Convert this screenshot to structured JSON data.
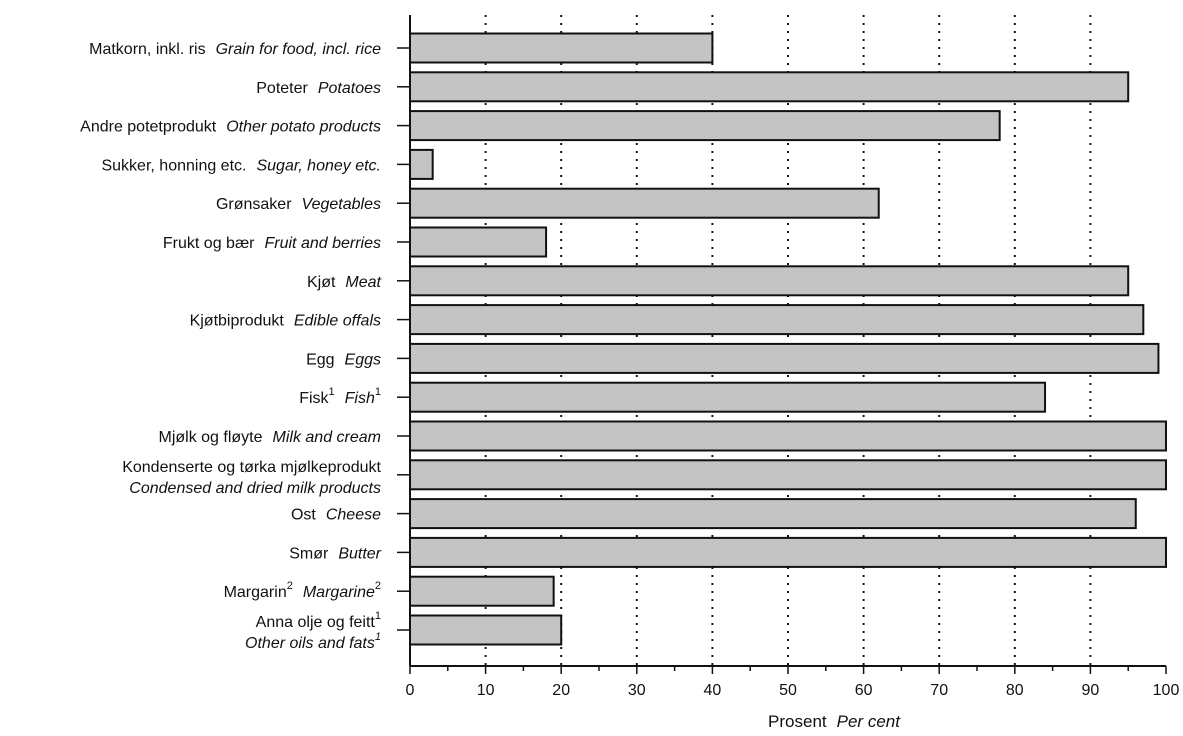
{
  "chart_data": {
    "type": "bar",
    "orientation": "horizontal",
    "categories": [
      {
        "no": "Matkorn, inkl. ris",
        "en": "Grain for food, incl. rice",
        "value": 40
      },
      {
        "no": "Poteter",
        "en": "Potatoes",
        "value": 95
      },
      {
        "no": "Andre potetprodukt",
        "en": "Other potato products",
        "value": 78
      },
      {
        "no": "Sukker, honning etc.",
        "en": "Sugar, honey etc.",
        "value": 3
      },
      {
        "no": "Grønsaker",
        "en": "Vegetables",
        "value": 62
      },
      {
        "no": "Frukt og bær",
        "en": "Fruit and berries",
        "value": 18
      },
      {
        "no": "Kjøt",
        "en": "Meat",
        "value": 95
      },
      {
        "no": "Kjøtbiprodukt",
        "en": "Edible offals",
        "value": 97
      },
      {
        "no": "Egg",
        "en": "Eggs",
        "value": 99
      },
      {
        "no": "Fisk",
        "no_sup": "1",
        "en": "Fish",
        "en_sup": "1",
        "value": 84
      },
      {
        "no": "Mjølk og fløyte",
        "en": "Milk and cream",
        "value": 100
      },
      {
        "no": "Kondenserte og tørka mjølkeprodukt",
        "en": "Condensed and dried milk products",
        "value": 100,
        "two_line": true
      },
      {
        "no": "Ost",
        "en": "Cheese",
        "value": 96
      },
      {
        "no": "Smør",
        "en": "Butter",
        "value": 100
      },
      {
        "no": "Margarin",
        "no_sup": "2",
        "en": "Margarine",
        "en_sup": "2",
        "value": 19
      },
      {
        "no": "Anna olje og feitt",
        "no_sup": "1",
        "en": "Other oils and fats",
        "en_sup": "1",
        "value": 20,
        "two_line": true
      }
    ],
    "xlim": [
      0,
      100
    ],
    "xticks": [
      0,
      10,
      20,
      30,
      40,
      50,
      60,
      70,
      80,
      90,
      100
    ],
    "xlabel_no": "Prosent",
    "xlabel_en": "Per cent",
    "grid": "vertical dotted",
    "bar_fill": "#c4c4c4",
    "bar_stroke": "#111111"
  }
}
